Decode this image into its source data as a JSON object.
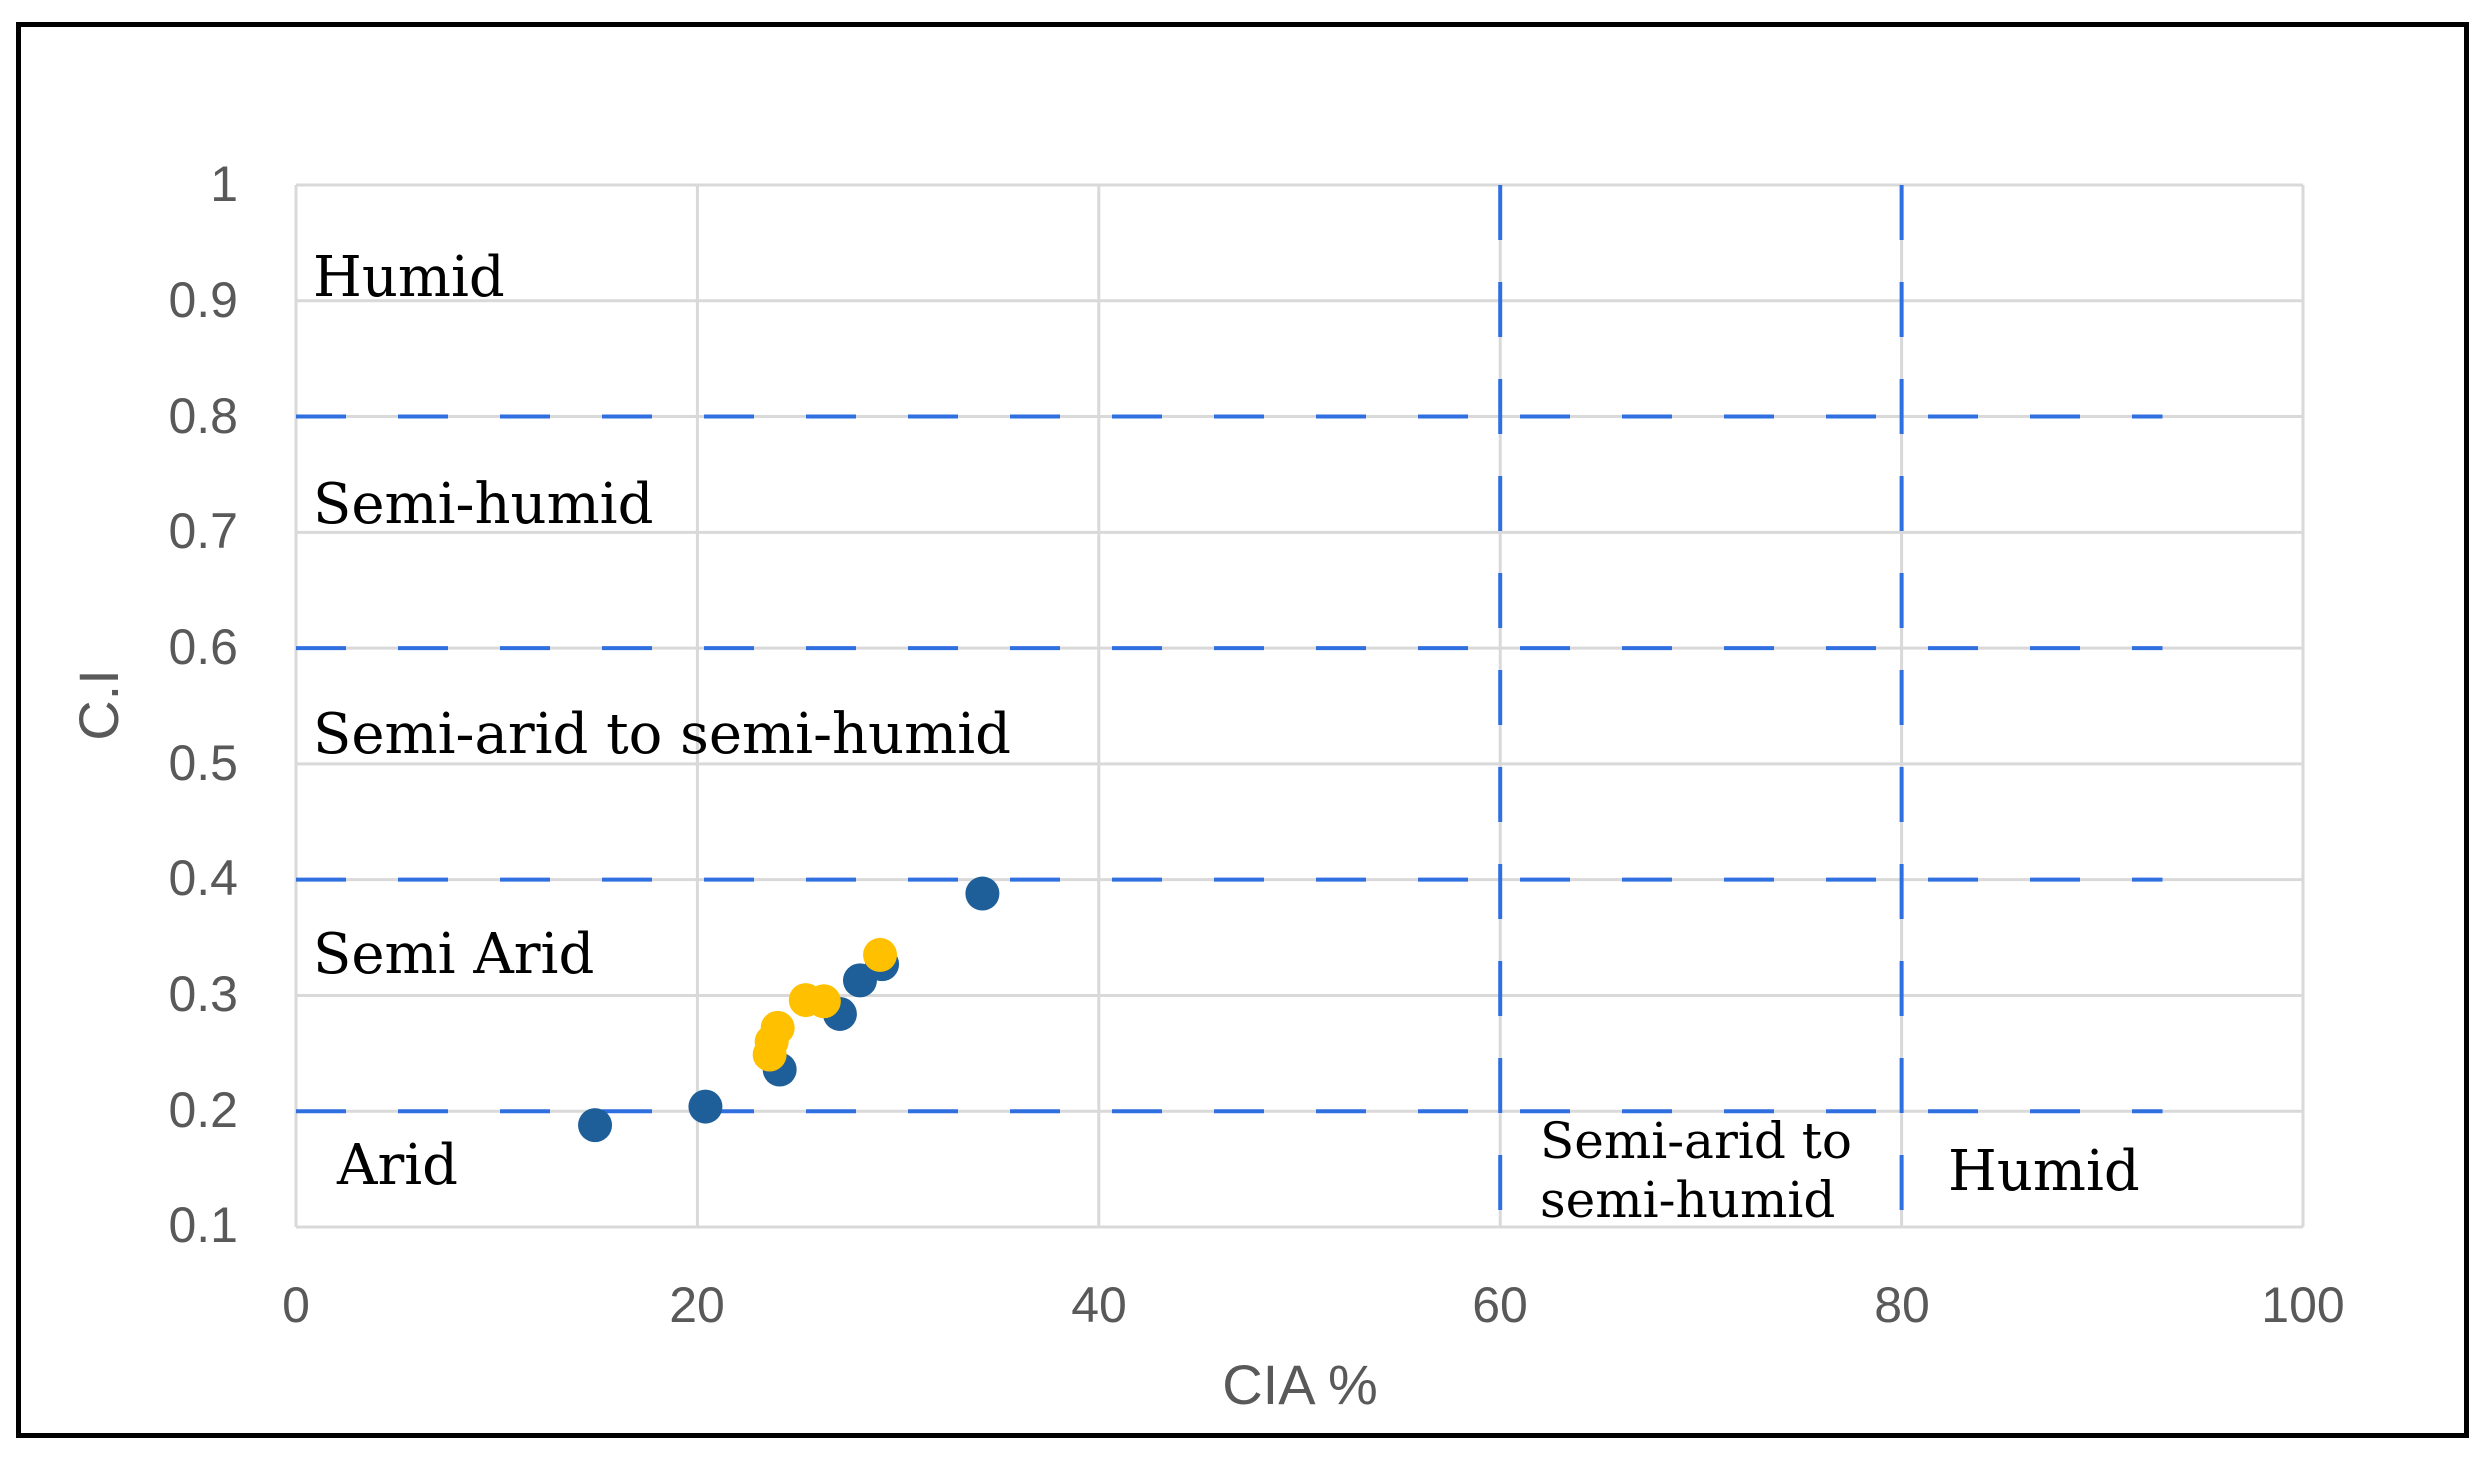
{
  "chart_data": {
    "type": "scatter",
    "xlabel": "CIA %",
    "ylabel": "C.I",
    "xlim": [
      0,
      100
    ],
    "ylim": [
      0.1,
      1
    ],
    "x_ticks": [
      "0",
      "20",
      "40",
      "60",
      "80",
      "100"
    ],
    "y_ticks": [
      "0.1",
      "0.2",
      "0.3",
      "0.4",
      "0.5",
      "0.6",
      "0.7",
      "0.8",
      "0.9",
      "1"
    ],
    "grid": true,
    "legend": "none",
    "colors": {
      "series_1": "#1f5f99",
      "series_2": "#ffc000",
      "zone_lines": "#2f6fe0",
      "grid": "#d9d9d9"
    },
    "series": [
      {
        "color": "#1f5f99",
        "points": [
          {
            "x": 14.9,
            "y": 0.188
          },
          {
            "x": 20.4,
            "y": 0.204
          },
          {
            "x": 24.1,
            "y": 0.236
          },
          {
            "x": 27.1,
            "y": 0.284
          },
          {
            "x": 28.1,
            "y": 0.313
          },
          {
            "x": 29.2,
            "y": 0.327
          },
          {
            "x": 34.2,
            "y": 0.388
          }
        ]
      },
      {
        "color": "#ffc000",
        "points": [
          {
            "x": 23.6,
            "y": 0.249
          },
          {
            "x": 23.7,
            "y": 0.26
          },
          {
            "x": 24.0,
            "y": 0.272
          },
          {
            "x": 25.4,
            "y": 0.296
          },
          {
            "x": 26.3,
            "y": 0.295
          },
          {
            "x": 29.1,
            "y": 0.335
          }
        ]
      }
    ],
    "zone_lines_y": [
      0.2,
      0.4,
      0.6,
      0.8
    ],
    "zone_lines_x": [
      60,
      80
    ],
    "zone_labels": {
      "humid": "Humid",
      "semi_humid": "Semi-humid",
      "semi_arid_to_semi_humid": "Semi-arid to semi-humid",
      "semi_arid": "Semi Arid",
      "arid": "Arid",
      "bottom_middle_line1": "Semi-arid to",
      "bottom_middle_line2": "semi-humid",
      "bottom_right": "Humid"
    }
  }
}
